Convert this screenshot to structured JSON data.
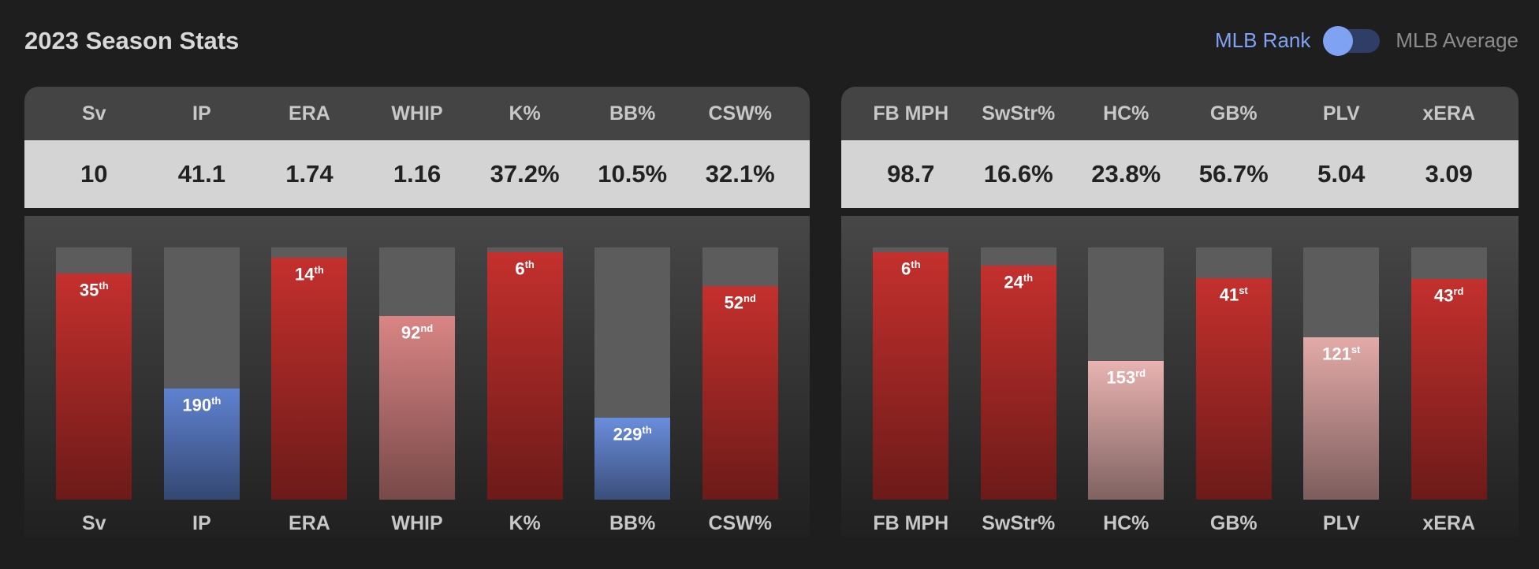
{
  "header": {
    "title": "2023 Season Stats",
    "toggle_left": "MLB Rank",
    "toggle_right": "MLB Average"
  },
  "panels": [
    {
      "ylim": [
        340,
        0
      ],
      "stats": [
        {
          "name": "Sv",
          "value": "10",
          "rank": 35,
          "suffix": "th",
          "color": "#c4302d"
        },
        {
          "name": "IP",
          "value": "41.1",
          "rank": 190,
          "suffix": "th",
          "color": "#5f82d0"
        },
        {
          "name": "ERA",
          "value": "1.74",
          "rank": 14,
          "suffix": "th",
          "color": "#c4302d"
        },
        {
          "name": "WHIP",
          "value": "1.16",
          "rank": 92,
          "suffix": "nd",
          "color": "#d98584"
        },
        {
          "name": "K%",
          "value": "37.2%",
          "rank": 6,
          "suffix": "th",
          "color": "#c4302d"
        },
        {
          "name": "BB%",
          "value": "10.5%",
          "rank": 229,
          "suffix": "th",
          "color": "#6a8edd"
        },
        {
          "name": "CSW%",
          "value": "32.1%",
          "rank": 52,
          "suffix": "nd",
          "color": "#c4302d"
        }
      ]
    },
    {
      "ylim": [
        340,
        0
      ],
      "stats": [
        {
          "name": "FB MPH",
          "value": "98.7",
          "rank": 6,
          "suffix": "th",
          "color": "#c4302d"
        },
        {
          "name": "SwStr%",
          "value": "16.6%",
          "rank": 24,
          "suffix": "th",
          "color": "#c4302d"
        },
        {
          "name": "HC%",
          "value": "23.8%",
          "rank": 153,
          "suffix": "rd",
          "color": "#e8b3b1"
        },
        {
          "name": "GB%",
          "value": "56.7%",
          "rank": 41,
          "suffix": "st",
          "color": "#c4302d"
        },
        {
          "name": "PLV",
          "value": "5.04",
          "rank": 121,
          "suffix": "st",
          "color": "#e2aaa8"
        },
        {
          "name": "xERA",
          "value": "3.09",
          "rank": 43,
          "suffix": "rd",
          "color": "#c4302d"
        }
      ]
    }
  ]
}
